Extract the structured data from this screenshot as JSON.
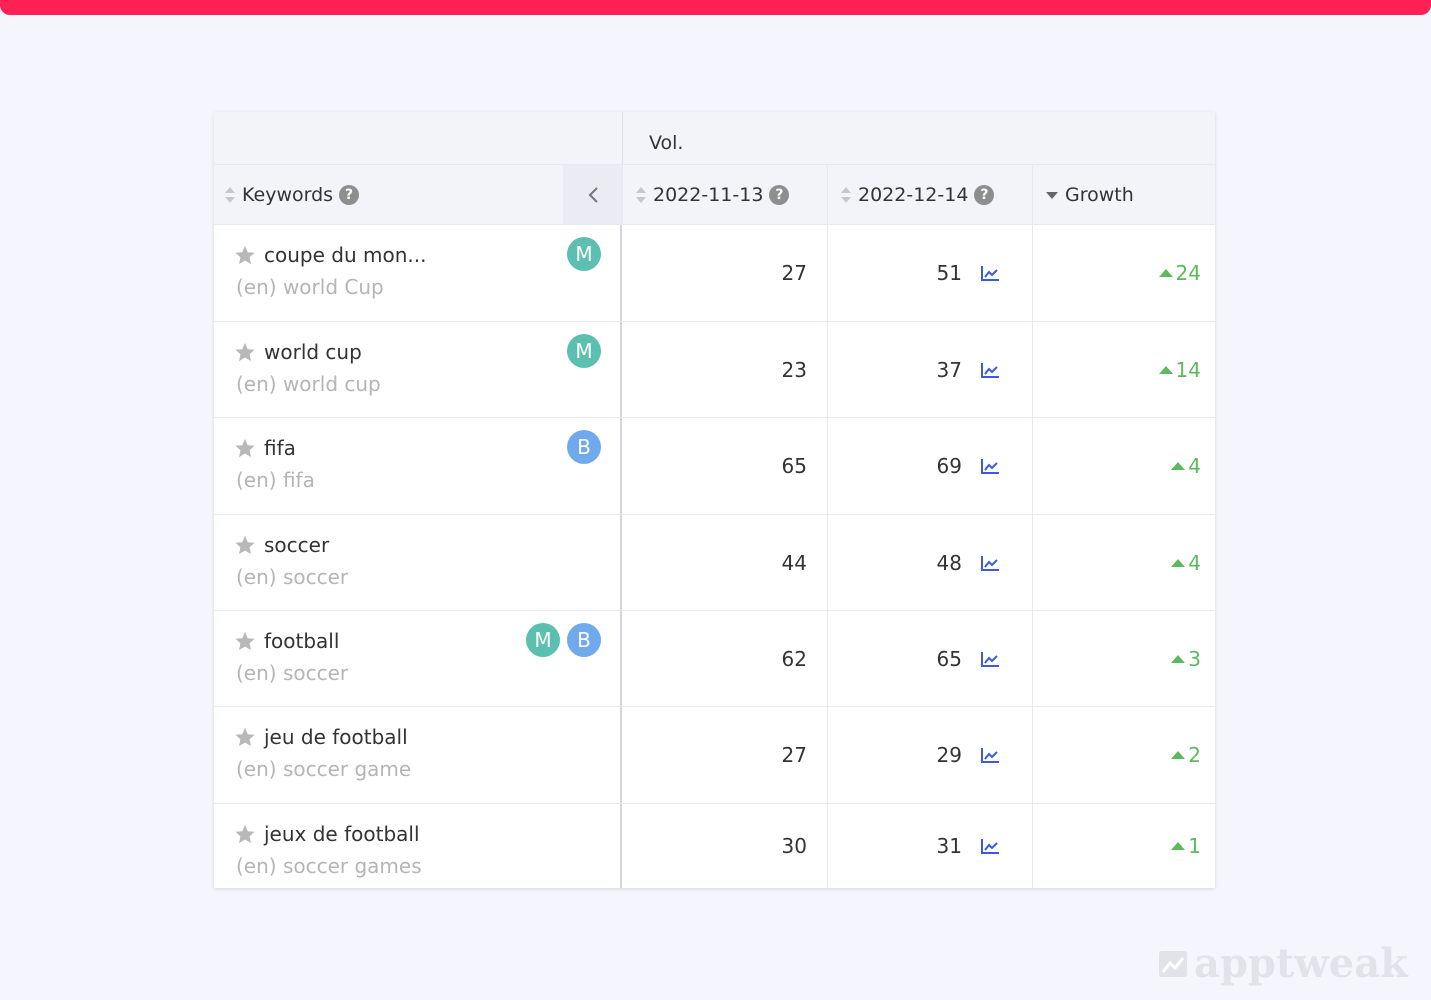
{
  "table": {
    "group_header": "Vol.",
    "columns": [
      "Keywords",
      "2022-11-13",
      "2022-12-14",
      "Growth"
    ],
    "badge_colors": {
      "M": "#5cbfb0",
      "B": "#70a9ec"
    },
    "rows": [
      {
        "keyword": "coupe du mon...",
        "translation": "(en) world Cup",
        "badges": [
          "M"
        ],
        "values": [
          27,
          51
        ],
        "growth": 24
      },
      {
        "keyword": "world cup",
        "translation": "(en) world cup",
        "badges": [
          "M"
        ],
        "values": [
          23,
          37
        ],
        "growth": 14
      },
      {
        "keyword": "fifa",
        "translation": "(en) fifa",
        "badges": [
          "B"
        ],
        "values": [
          65,
          69
        ],
        "growth": 4
      },
      {
        "keyword": "soccer",
        "translation": "(en) soccer",
        "badges": [],
        "values": [
          44,
          48
        ],
        "growth": 4
      },
      {
        "keyword": "football",
        "translation": "(en) soccer",
        "badges": [
          "M",
          "B"
        ],
        "values": [
          62,
          65
        ],
        "growth": 3
      },
      {
        "keyword": "jeu de football",
        "translation": "(en) soccer game",
        "badges": [],
        "values": [
          27,
          29
        ],
        "growth": 2
      },
      {
        "keyword": "jeux de football",
        "translation": "(en) soccer games",
        "badges": [],
        "values": [
          30,
          31
        ],
        "growth": 1
      }
    ]
  },
  "watermark": "apptweak"
}
